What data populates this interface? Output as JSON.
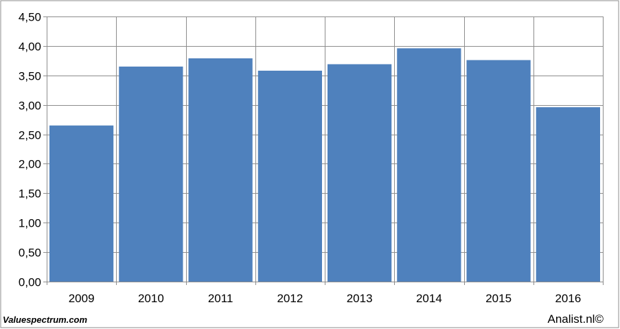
{
  "chart_data": {
    "type": "bar",
    "categories": [
      "2009",
      "2010",
      "2011",
      "2012",
      "2013",
      "2014",
      "2015",
      "2016"
    ],
    "values": [
      2.65,
      3.65,
      3.79,
      3.58,
      3.69,
      3.96,
      3.76,
      2.96
    ],
    "ylim": [
      0,
      4.5
    ],
    "yticks": [
      0,
      0.5,
      1.0,
      1.5,
      2.0,
      2.5,
      3.0,
      3.5,
      4.0,
      4.5
    ],
    "ytick_labels": [
      "0,00",
      "0,50",
      "1,00",
      "1,50",
      "2,00",
      "2,50",
      "3,00",
      "3,50",
      "4,00",
      "4,50"
    ],
    "grid": true,
    "bar_color": "#4f81bd",
    "title": "",
    "xlabel": "",
    "ylabel": ""
  },
  "footer": {
    "source_left": "Valuespectrum.com",
    "source_right": "Analist.nl©"
  }
}
